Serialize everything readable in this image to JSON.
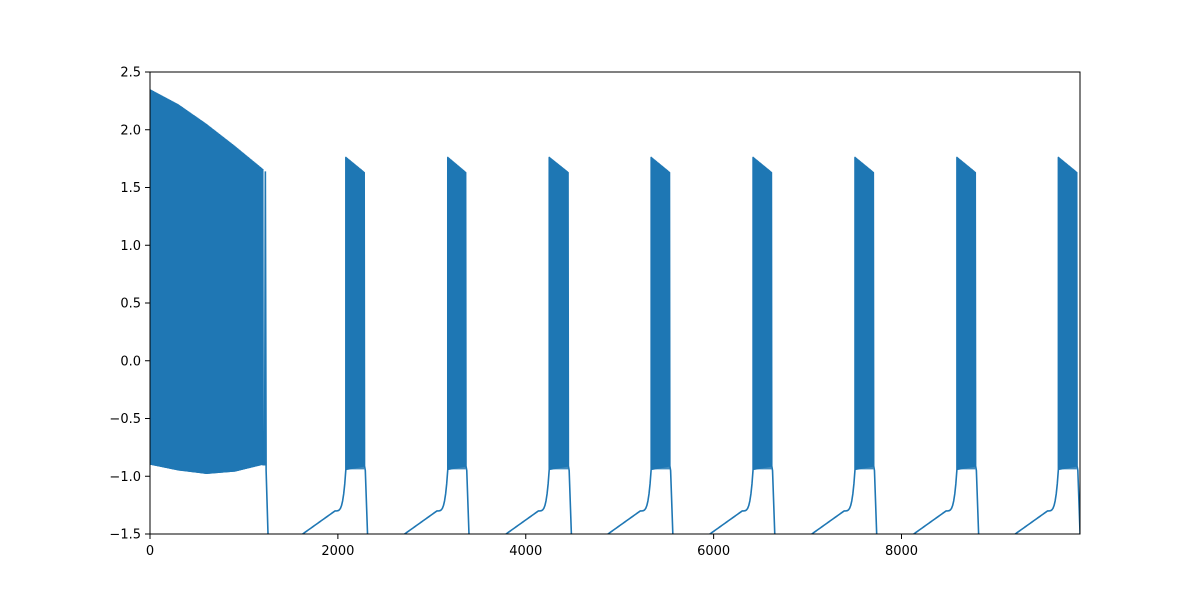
{
  "chart_data": {
    "type": "line",
    "title": "",
    "xlabel": "",
    "ylabel": "",
    "xlim": [
      0,
      9900
    ],
    "ylim": [
      -1.5,
      2.5
    ],
    "x_ticks": [
      0,
      2000,
      4000,
      6000,
      8000
    ],
    "x_tick_labels": [
      "0",
      "2000",
      "4000",
      "6000",
      "8000"
    ],
    "y_ticks": [
      -1.5,
      -1.0,
      -0.5,
      0.0,
      0.5,
      1.0,
      1.5,
      2.0,
      2.5
    ],
    "y_tick_labels": [
      "−1.5",
      "−1.0",
      "−0.5",
      "0.0",
      "0.5",
      "1.0",
      "1.5",
      "2.0",
      "2.5"
    ],
    "grid": false,
    "legend": "none",
    "color": "#1f77b4",
    "series": [
      {
        "initial_band": {
          "x_range": [
            0,
            1200
          ],
          "upper": [
            [
              0,
              2.35
            ],
            [
              300,
              2.22
            ],
            [
              600,
              2.05
            ],
            [
              900,
              1.86
            ],
            [
              1200,
              1.66
            ]
          ],
          "lower": [
            [
              0,
              -0.9
            ],
            [
              300,
              -0.95
            ],
            [
              600,
              -0.98
            ],
            [
              900,
              -0.96
            ],
            [
              1200,
              -0.9
            ]
          ]
        },
        "bursts": [
          {
            "start": 2085,
            "end": 2280
          },
          {
            "start": 3170,
            "end": 3360
          },
          {
            "start": 4250,
            "end": 4450
          },
          {
            "start": 5335,
            "end": 5530
          },
          {
            "start": 6420,
            "end": 6615
          },
          {
            "start": 7505,
            "end": 7700
          },
          {
            "start": 8590,
            "end": 8785
          },
          {
            "start": 9670,
            "end": 9865
          }
        ],
        "burst_peak": 1.76,
        "burst_end_peak": 1.63,
        "burst_trough": -0.94,
        "recovery_start": -1.5,
        "recovery_knee": -1.3
      }
    ]
  }
}
